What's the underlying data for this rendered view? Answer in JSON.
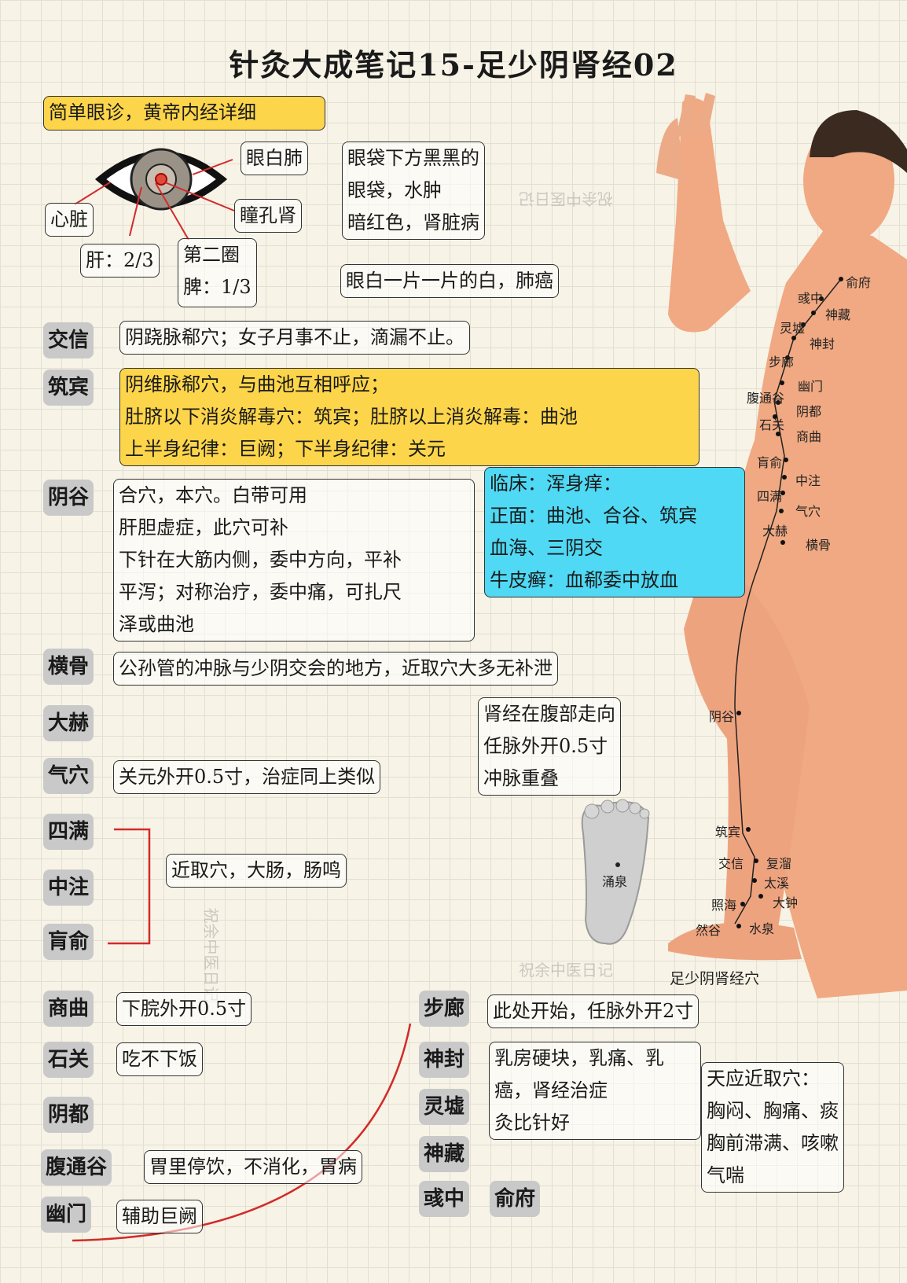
{
  "title": "针灸大成笔记15-足少阴肾经02",
  "eye": {
    "header": "简单眼诊，黄帝内经详细",
    "white_lung": "眼白肺",
    "pupil_kidney": "瞳孔肾",
    "heart": "心脏",
    "liver": "肝：2/3",
    "ring2_line1": "第二圈",
    "ring2_line2": "脾：1/3",
    "bag_lines": [
      "眼袋下方黑黑的",
      "眼袋，水肿",
      "暗红色，肾脏病"
    ],
    "lung_cancer": "眼白一片一片的白，肺癌"
  },
  "points": {
    "jiaoxin": {
      "label": "交信",
      "note": "阴跷脉郗穴；女子月事不止，滴漏不止。"
    },
    "zhubin": {
      "label": "筑宾",
      "lines": [
        "阴维脉郗穴，与曲池互相呼应；",
        "肚脐以下消炎解毒穴：筑宾；肚脐以上消炎解毒：曲池",
        "上半身纪律：巨阙；下半身纪律：关元"
      ]
    },
    "yingu": {
      "label": "阴谷",
      "lines": [
        "合穴，本穴。白带可用",
        "肝胆虚症，此穴可补",
        "下针在大筋内侧，委中方向，平补",
        "平泻；对称治疗，委中痛，可扎尺",
        "泽或曲池"
      ]
    },
    "clinic": {
      "lines": [
        "临床：浑身痒：",
        "正面：曲池、合谷、筑宾",
        "血海、三阴交",
        "牛皮癣：血郗委中放血"
      ]
    },
    "henggu": {
      "label": "横骨",
      "note": "公孙管的冲脉与少阴交会的地方，近取穴大多无补泄"
    },
    "dahe": {
      "label": "大赫"
    },
    "qixue": {
      "label": "气穴",
      "note": "关元外开0.5寸，治症同上类似"
    },
    "kidney_abdomen": {
      "lines": [
        "肾经在腹部走向",
        "任脉外开0.5寸",
        "冲脉重叠"
      ]
    },
    "siman": {
      "label": "四满"
    },
    "zhongzhu": {
      "label": "中注"
    },
    "huangshu": {
      "label": "肓俞"
    },
    "group_note": "近取穴，大肠，肠鸣",
    "shangqu": {
      "label": "商曲",
      "note": "下脘外开0.5寸"
    },
    "shiguan": {
      "label": "石关",
      "note": "吃不下饭"
    },
    "yindu": {
      "label": "阴都"
    },
    "futonggu": {
      "label": "腹通谷",
      "note": "胃里停饮，不消化，胃病"
    },
    "youmen": {
      "label": "幽门",
      "note": "辅助巨阙"
    },
    "bulang": {
      "label": "步廊",
      "note": "此处开始，任脉外开2寸"
    },
    "shenfeng": {
      "label": "神封"
    },
    "lingxu": {
      "label": "灵墟"
    },
    "shencang": {
      "label": "神藏"
    },
    "yuzhong": {
      "label": "彧中"
    },
    "shufu": {
      "label": "俞府"
    },
    "chest_note": [
      "乳房硬块，乳痛、乳",
      "癌，肾经治症",
      "灸比针好"
    ],
    "tianying": [
      "天应近取穴：",
      "胸闷、胸痛、痰",
      "胸前滞满、咳嗽",
      "气喘"
    ]
  },
  "figure": {
    "caption": "足少阴肾经穴",
    "foot_point": "涌泉",
    "acupoints": [
      "俞府",
      "彧中",
      "神藏",
      "灵墟",
      "神封",
      "步廊",
      "幽门",
      "腹通谷",
      "阴都",
      "石关",
      "商曲",
      "肓俞",
      "中注",
      "四满",
      "气穴",
      "大赫",
      "横骨",
      "阴谷",
      "筑宾",
      "交信",
      "复溜",
      "太溪",
      "照海",
      "大钟",
      "然谷",
      "水泉"
    ]
  },
  "watermark": "祝余中医日记",
  "colors": {
    "yellow": "#fdd54a",
    "cyan": "#4fd9f4",
    "tag_gray": "#c9c9c9",
    "red_line": "#d22a2a",
    "skin": "#f0a982"
  }
}
